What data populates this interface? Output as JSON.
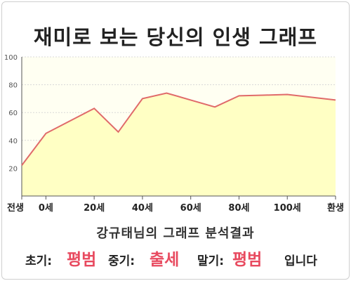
{
  "title": "재미로 보는 당신의 인생 그래프",
  "chart_data": {
    "type": "area",
    "x": [
      -10,
      0,
      20,
      30,
      40,
      50,
      60,
      70,
      80,
      90,
      100,
      120
    ],
    "values": [
      22,
      45,
      63,
      46,
      70,
      74,
      69,
      64,
      72,
      72.5,
      73,
      69
    ],
    "xticks": [
      {
        "value": -10,
        "label": "전생"
      },
      {
        "value": 0,
        "label": "0세"
      },
      {
        "value": 20,
        "label": "20세"
      },
      {
        "value": 40,
        "label": "40세"
      },
      {
        "value": 60,
        "label": "60세"
      },
      {
        "value": 80,
        "label": "80세"
      },
      {
        "value": 100,
        "label": "100세"
      },
      {
        "value": 120,
        "label": "환생"
      }
    ],
    "yticks": [
      20,
      40,
      60,
      80,
      100
    ],
    "ylim": [
      0,
      100
    ],
    "grid": true,
    "line_color": "#e06a6a",
    "fill_color": "#ffffc4"
  },
  "result": {
    "heading": "강규태님의 그래프 분석결과",
    "early_label": "초기:",
    "early_value": "평범",
    "mid_label": "중기:",
    "mid_value": "출세",
    "late_label": "말기:",
    "late_value": "평범",
    "suffix": "입니다",
    "value_color": "#e84a5f"
  }
}
